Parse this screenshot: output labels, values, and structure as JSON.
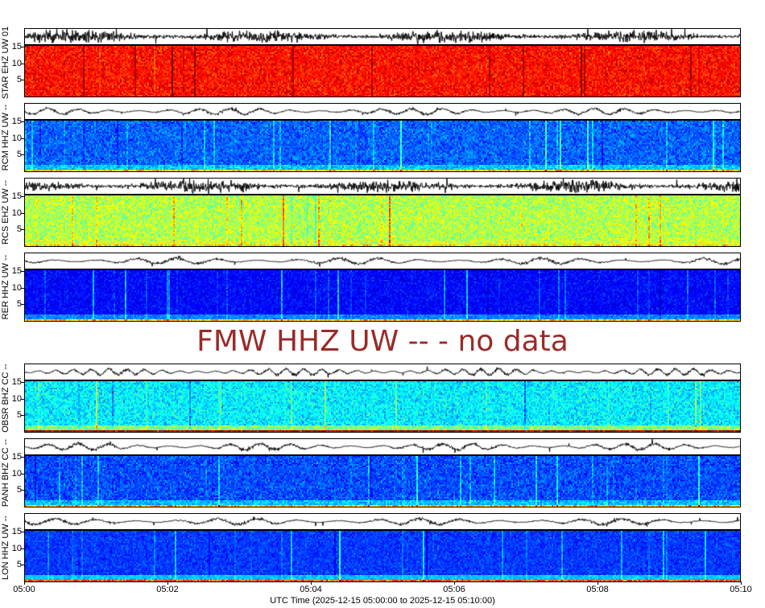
{
  "chart_data": {
    "type": "heatmap",
    "colormap": "jet",
    "xlabel": "UTC Time (2025-12-15 05:00:00 to 2025-12-15 05:10:00)",
    "x_ticks": [
      "05:00",
      "05:02",
      "05:04",
      "05:06",
      "05:08",
      "05:10"
    ],
    "xlim": [
      "05:00",
      "05:10"
    ],
    "y_ticks": [
      "5",
      "10",
      "15"
    ],
    "ylim": [
      0,
      15.5
    ],
    "panels": [
      {
        "label": "STAR EHZ UW 01",
        "has_data": true
      },
      {
        "label": "RCM HHZ UW --",
        "has_data": true
      },
      {
        "label": "RCS EHZ UW --",
        "has_data": true
      },
      {
        "label": "RER HHZ UW --",
        "has_data": true
      },
      {
        "label": "FMW HHZ UW --",
        "has_data": false
      },
      {
        "label": "OBSR BHZ CC --",
        "has_data": true
      },
      {
        "label": "PANH BHZ CC --",
        "has_data": true
      },
      {
        "label": "LON HHZ UW --",
        "has_data": true
      }
    ],
    "no_data_message": "FMW HHZ UW -- - no data",
    "no_data_color": "#9b2a2a"
  }
}
